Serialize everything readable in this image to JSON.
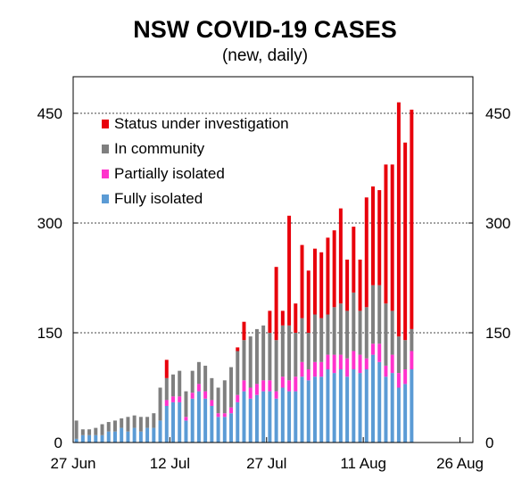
{
  "chart_data": {
    "type": "bar",
    "stacked": true,
    "title": "NSW COVID-19 CASES",
    "subtitle": "(new, daily)",
    "ylim": [
      0,
      500
    ],
    "yticks": [
      0,
      150,
      300,
      450
    ],
    "ytick_labels": [
      "0",
      "150",
      "300",
      "450"
    ],
    "grid": "horizontal dashed at 150, 300, 450",
    "xtick_labels": [
      "27 Jun",
      "12 Jul",
      "27 Jul",
      "11 Aug",
      "26 Aug"
    ],
    "xtick_day_index": [
      0,
      15,
      30,
      45,
      60
    ],
    "x_range_days": 62,
    "legend_position": "top-left",
    "legend": [
      "Status under investigation",
      "In community",
      "Partially isolated",
      "Fully isolated"
    ],
    "colors": {
      "Fully isolated": "#5b9bd5",
      "Partially isolated": "#ff33cc",
      "In community": "#7f7f7f",
      "Status under investigation": "#e8000b"
    },
    "day_index": [
      0,
      1,
      2,
      3,
      4,
      5,
      6,
      7,
      8,
      9,
      10,
      11,
      12,
      13,
      14,
      15,
      16,
      17,
      18,
      19,
      20,
      21,
      22,
      23,
      24,
      25,
      26,
      27,
      28,
      29,
      30,
      31,
      32,
      33,
      34,
      35,
      36,
      37,
      38,
      39,
      40,
      41,
      42,
      43,
      44,
      45,
      46,
      47,
      48,
      49,
      50,
      51,
      52
    ],
    "series": [
      {
        "name": "Fully isolated",
        "values": [
          5,
          10,
          10,
          10,
          10,
          15,
          15,
          20,
          15,
          20,
          15,
          20,
          20,
          30,
          50,
          55,
          55,
          30,
          60,
          70,
          60,
          50,
          35,
          35,
          40,
          55,
          70,
          60,
          65,
          70,
          70,
          60,
          75,
          70,
          70,
          90,
          85,
          90,
          90,
          100,
          95,
          100,
          90,
          100,
          95,
          100,
          120,
          110,
          90,
          95,
          75,
          80,
          100
        ]
      },
      {
        "name": "Partially isolated",
        "values": [
          0,
          0,
          0,
          0,
          0,
          0,
          0,
          0,
          0,
          0,
          0,
          0,
          0,
          0,
          8,
          8,
          8,
          5,
          8,
          10,
          10,
          8,
          5,
          5,
          8,
          10,
          15,
          15,
          15,
          15,
          15,
          10,
          15,
          15,
          20,
          20,
          15,
          20,
          20,
          20,
          25,
          20,
          25,
          25,
          25,
          15,
          15,
          25,
          15,
          25,
          20,
          20,
          25
        ]
      },
      {
        "name": "In community",
        "values": [
          25,
          8,
          8,
          10,
          15,
          13,
          15,
          13,
          20,
          17,
          20,
          15,
          20,
          45,
          30,
          30,
          35,
          35,
          30,
          30,
          35,
          30,
          35,
          45,
          55,
          60,
          55,
          70,
          75,
          75,
          65,
          70,
          70,
          75,
          60,
          60,
          50,
          65,
          60,
          55,
          65,
          70,
          65,
          80,
          60,
          70,
          80,
          80,
          85,
          60,
          50,
          40,
          30
        ]
      },
      {
        "name": "Status under investigation",
        "values": [
          0,
          0,
          0,
          0,
          0,
          0,
          0,
          0,
          0,
          0,
          0,
          0,
          0,
          0,
          25,
          0,
          0,
          0,
          0,
          0,
          0,
          0,
          0,
          0,
          0,
          5,
          25,
          0,
          0,
          0,
          30,
          100,
          20,
          150,
          40,
          100,
          85,
          90,
          90,
          105,
          105,
          130,
          70,
          90,
          70,
          150,
          135,
          130,
          190,
          200,
          320,
          270,
          300
        ]
      }
    ]
  }
}
